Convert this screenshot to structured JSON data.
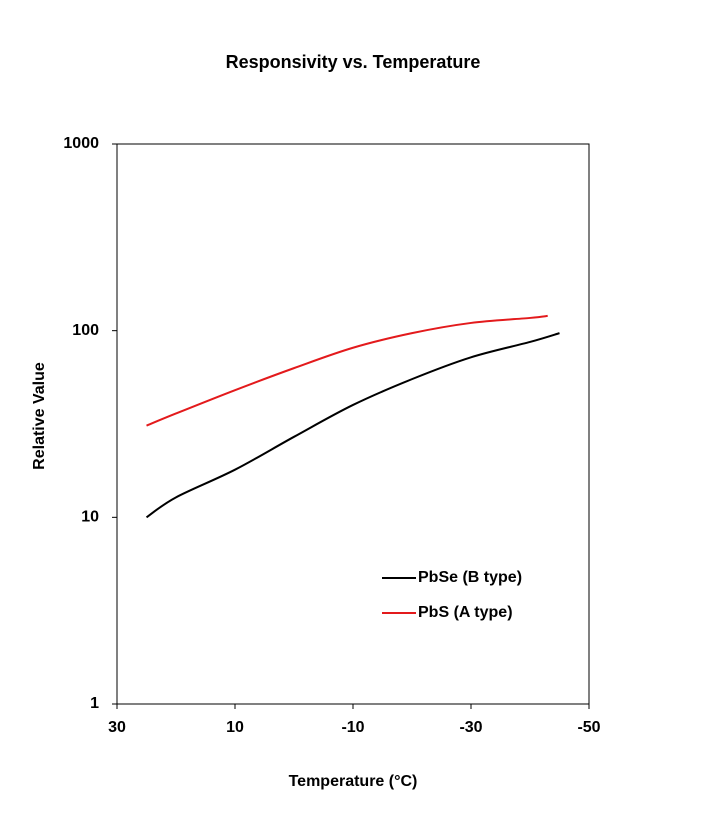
{
  "chart_data": {
    "type": "line",
    "title": "Responsivity vs. Temperature",
    "x_label": "Temperature (°C)",
    "y_label": "Relative Value",
    "x": [
      25,
      20,
      10,
      0,
      -10,
      -20,
      -30,
      -40,
      -45
    ],
    "series": [
      {
        "name": "PbSe (B type)",
        "color": "#000000",
        "values": [
          10,
          12.8,
          18,
          27,
          40,
          55,
          72,
          87,
          97
        ]
      },
      {
        "name": "PbS (A type)",
        "color": "#e31a1c",
        "values": [
          31,
          36,
          48,
          63,
          81,
          97,
          110,
          117,
          120
        ]
      }
    ],
    "red_x": [
      25,
      20,
      10,
      0,
      -10,
      -20,
      -30,
      -40,
      -43
    ],
    "xlim": [
      30,
      -50
    ],
    "xticks": [
      30,
      10,
      -10,
      -30,
      -50
    ],
    "ylim": [
      1,
      1000
    ],
    "yticks": [
      1,
      10,
      100,
      1000
    ],
    "y_scale": "log",
    "grid": false,
    "legend": "lower right"
  }
}
